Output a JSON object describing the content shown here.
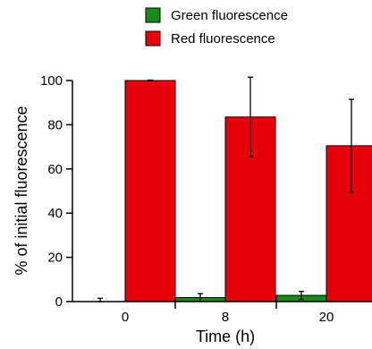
{
  "chart_data": {
    "type": "bar",
    "categories": [
      "0",
      "8",
      "20"
    ],
    "series": [
      {
        "name": "Green fluorescence",
        "color": "#1a8a1a",
        "values": [
          0,
          1.8,
          2.8
        ],
        "errors": [
          1.5,
          1.8,
          1.8
        ]
      },
      {
        "name": "Red fluorescence",
        "color": "#e8000b",
        "values": [
          100,
          83.5,
          70.5
        ],
        "errors": [
          0.2,
          18,
          21
        ]
      }
    ],
    "xlabel": "Time (h)",
    "ylabel": "% of initial fluorescence",
    "ylim": [
      0,
      100
    ],
    "yticks": [
      "0",
      "20",
      "40",
      "60",
      "80",
      "100"
    ],
    "legend_position": "top",
    "grid": false
  }
}
